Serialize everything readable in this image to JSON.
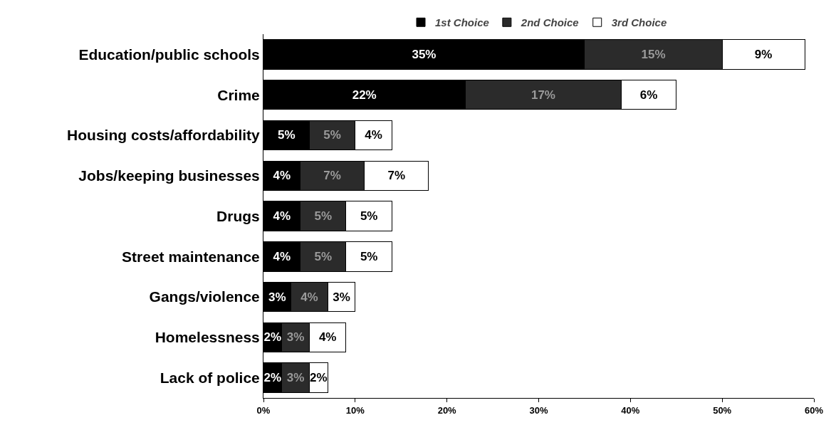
{
  "chart_data": {
    "type": "bar",
    "orientation": "horizontal",
    "stacked": true,
    "legend": "top",
    "grid": false,
    "categories": [
      "Education/public schools",
      "Crime",
      "Housing costs/affordability",
      "Jobs/keeping businesses",
      "Drugs",
      "Street maintenance",
      "Gangs/violence",
      "Homelessness",
      "Lack of police"
    ],
    "series": [
      {
        "name": "1st Choice",
        "color": "#000000",
        "values": [
          35,
          22,
          5,
          4,
          4,
          4,
          3,
          2,
          2
        ],
        "value_labels": [
          "35%",
          "22%",
          "5%",
          "4%",
          "4%",
          "4%",
          "3%",
          "2%",
          "2%"
        ]
      },
      {
        "name": "2nd Choice",
        "color": "#2b2b2b",
        "values": [
          15,
          17,
          5,
          7,
          5,
          5,
          4,
          3,
          3
        ],
        "value_labels": [
          "15%",
          "17%",
          "5%",
          "7%",
          "5%",
          "5%",
          "4%",
          "3%",
          "3%"
        ]
      },
      {
        "name": "3rd Choice",
        "color": "#ffffff",
        "values": [
          9,
          6,
          4,
          7,
          5,
          5,
          3,
          4,
          2
        ],
        "value_labels": [
          "9%",
          "6%",
          "4%",
          "7%",
          "5%",
          "5%",
          "3%",
          "4%",
          "2%"
        ]
      }
    ],
    "xlim": [
      0,
      60
    ],
    "xticks": [
      {
        "value": 0,
        "label": "0%"
      },
      {
        "value": 10,
        "label": "10%"
      },
      {
        "value": 20,
        "label": "20%"
      },
      {
        "value": 30,
        "label": "30%"
      },
      {
        "value": 40,
        "label": "40%"
      },
      {
        "value": 50,
        "label": "50%"
      },
      {
        "value": 60,
        "label": "60%"
      }
    ]
  }
}
